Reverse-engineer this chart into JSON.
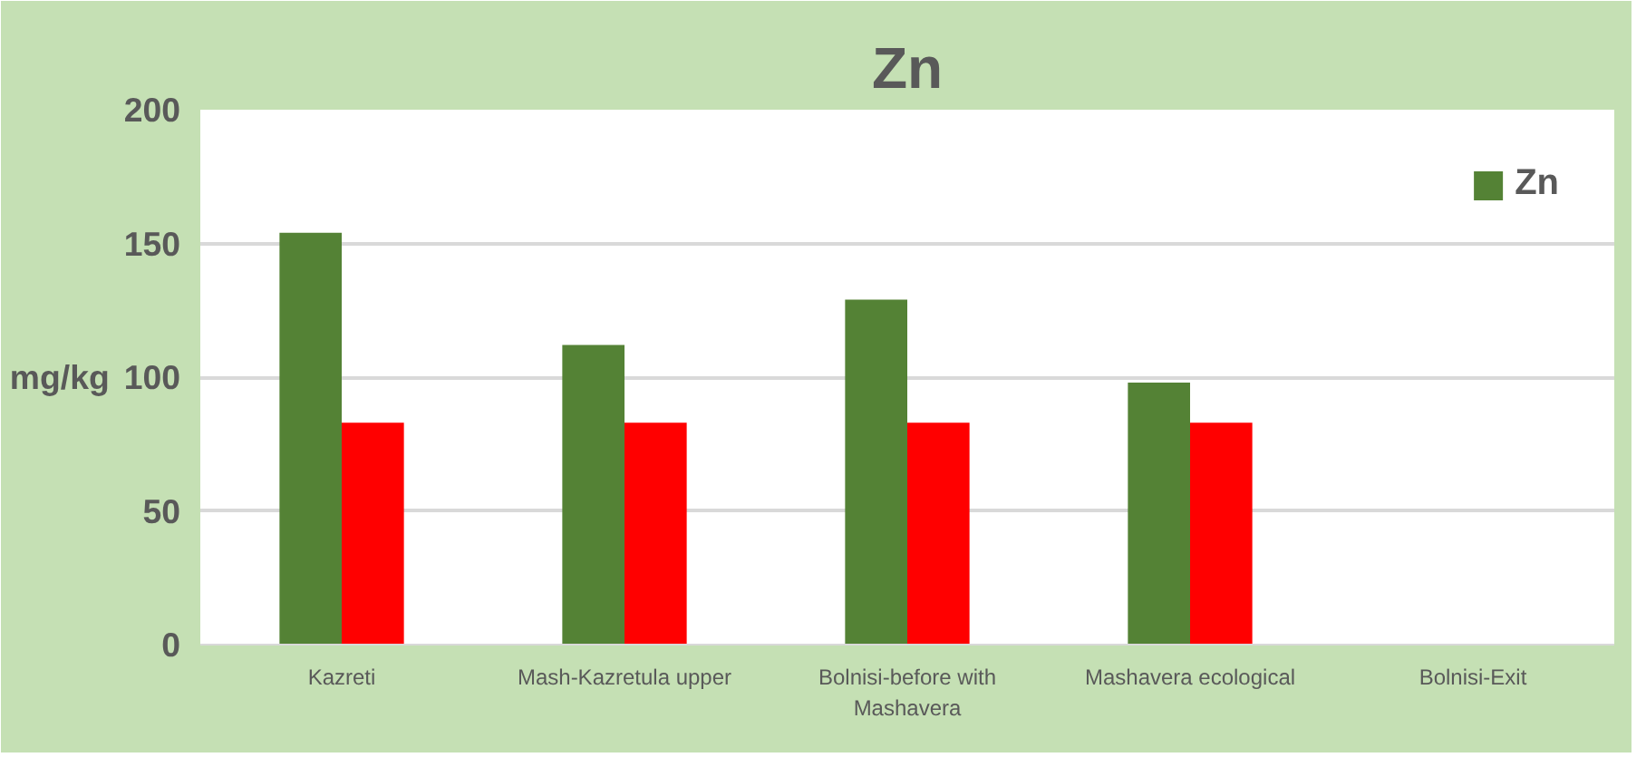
{
  "chart_data": {
    "type": "bar",
    "title": "Zn",
    "ylabel": "mg/kg",
    "categories": [
      "Kazreti",
      "Mash-Kazretula upper",
      "Bolnisi-before with Mashavera",
      "Mashavera ecological",
      "Bolnisi-Exit"
    ],
    "series": [
      {
        "name": "Zn",
        "color": "#548235",
        "values": [
          154,
          112,
          129,
          98,
          null
        ]
      },
      {
        "color": "#ff0000",
        "values": [
          83,
          83,
          83,
          83,
          null
        ]
      }
    ],
    "ylim": [
      0,
      200
    ],
    "yticks": [
      0,
      50,
      100,
      150,
      200
    ],
    "grid": "y",
    "legend": "top right"
  }
}
